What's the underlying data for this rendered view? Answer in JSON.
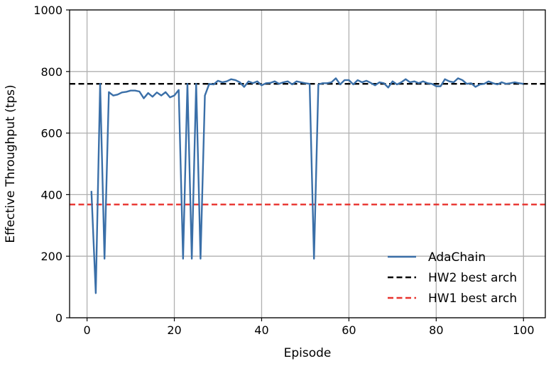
{
  "chart_data": {
    "type": "line",
    "title": "",
    "xlabel": "Episode",
    "ylabel": "Effective Throughput (tps)",
    "xlim": [
      -4,
      105
    ],
    "ylim": [
      0,
      1000
    ],
    "xticks": [
      0,
      20,
      40,
      60,
      80,
      100
    ],
    "yticks": [
      0,
      200,
      400,
      600,
      800,
      1000
    ],
    "grid": true,
    "legend_position": "bottom-right",
    "series": [
      {
        "name": "AdaChain",
        "color": "#3a6fa8",
        "style": "solid",
        "x": [
          1,
          2,
          3,
          4,
          5,
          6,
          7,
          8,
          9,
          10,
          11,
          12,
          13,
          14,
          15,
          16,
          17,
          18,
          19,
          20,
          21,
          22,
          23,
          24,
          25,
          26,
          27,
          28,
          29,
          30,
          31,
          32,
          33,
          34,
          35,
          36,
          37,
          38,
          39,
          40,
          41,
          42,
          43,
          44,
          45,
          46,
          47,
          48,
          49,
          50,
          51,
          52,
          53,
          54,
          55,
          56,
          57,
          58,
          59,
          60,
          61,
          62,
          63,
          64,
          65,
          66,
          67,
          68,
          69,
          70,
          71,
          72,
          73,
          74,
          75,
          76,
          77,
          78,
          79,
          80,
          81,
          82,
          83,
          84,
          85,
          86,
          87,
          88,
          89,
          90,
          91,
          92,
          93,
          94,
          95,
          96,
          97,
          98,
          99,
          100
        ],
        "y": [
          412,
          80,
          760,
          192,
          733,
          722,
          725,
          732,
          734,
          738,
          738,
          735,
          713,
          730,
          718,
          732,
          722,
          733,
          716,
          722,
          740,
          192,
          760,
          192,
          760,
          192,
          722,
          760,
          758,
          770,
          765,
          768,
          775,
          772,
          765,
          750,
          768,
          762,
          768,
          755,
          762,
          763,
          768,
          760,
          765,
          768,
          758,
          768,
          765,
          762,
          760,
          192,
          758,
          762,
          762,
          765,
          778,
          758,
          772,
          772,
          758,
          772,
          765,
          770,
          763,
          755,
          765,
          762,
          748,
          768,
          758,
          765,
          775,
          765,
          768,
          762,
          768,
          762,
          760,
          752,
          752,
          775,
          768,
          765,
          778,
          772,
          760,
          762,
          750,
          758,
          760,
          768,
          762,
          758,
          765,
          760,
          762,
          765,
          762,
          760
        ]
      },
      {
        "name": "HW2 best arch",
        "color": "#000000",
        "style": "dashed",
        "value": 760
      },
      {
        "name": "HW1 best arch",
        "color": "#e8322d",
        "style": "dashed",
        "value": 368
      }
    ]
  }
}
